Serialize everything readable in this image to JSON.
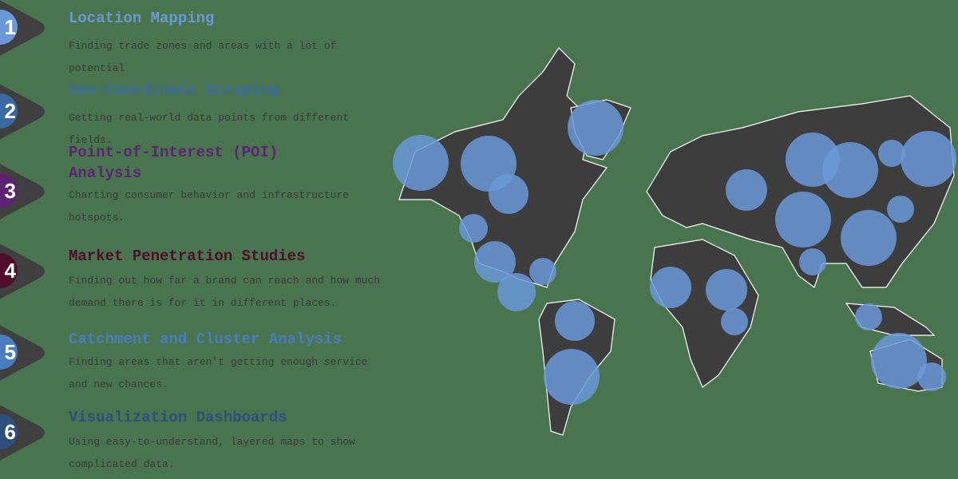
{
  "colors": {
    "background": "#48744e",
    "land": "#3d3d3d",
    "bubble": "#6a98d8",
    "chevron": "#3f3f3f"
  },
  "steps": [
    {
      "number": "1",
      "title": "Location Mapping",
      "description": "Finding trade zones and areas with a lot of potential",
      "color": "#6a98d8"
    },
    {
      "number": "2",
      "title": "Geo-Coordinate Scraping",
      "description": "Getting real-world data points from different fields.",
      "color": "#3a6aa2"
    },
    {
      "number": "3",
      "title": "Point-of-Interest (POI) Analysis",
      "description": "Charting consumer behavior and infrastructure hotspots.",
      "color": "#5e2275"
    },
    {
      "number": "4",
      "title": "Market Penetration Studies",
      "description": "Finding out how far a brand can reach and how much demand there is for it in different places.",
      "color": "#4f0c2c"
    },
    {
      "number": "5",
      "title": "Catchment and Cluster Analysis",
      "description": "Finding areas that aren't getting enough service and new chances.",
      "color": "#4a7cc0"
    },
    {
      "number": "6",
      "title": "Visualization Dashboards",
      "description": "Using easy-to-understand, layered maps to show complicated data.",
      "color": "#2c4f7e"
    }
  ]
}
